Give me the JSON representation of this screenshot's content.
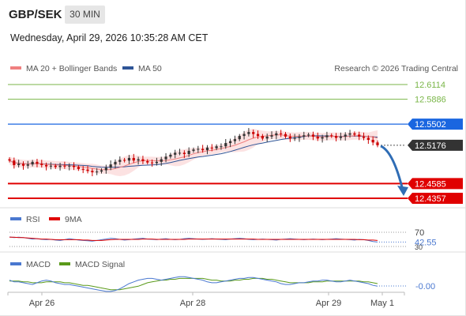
{
  "header": {
    "symbol": "GBP/SEK",
    "timeframe": "30 MIN",
    "datetime": "Wednesday, April 29, 2026 10:35:28 AM CET"
  },
  "price_panel": {
    "legend": [
      {
        "label": "MA 20 + Bollinger Bands",
        "color": "#f08080"
      },
      {
        "label": "MA 50",
        "color": "#2f5597"
      }
    ],
    "research_text": "Research © 2026 Trading Central",
    "levels": [
      {
        "value": 12.6114,
        "label": "12.6114",
        "color": "#7ab648",
        "kind": "resistance"
      },
      {
        "value": 12.5886,
        "label": "12.5886",
        "color": "#7ab648",
        "kind": "resistance"
      },
      {
        "value": 12.5502,
        "label": "12.5502",
        "color": "#1a66e0",
        "kind": "pivot"
      },
      {
        "value": 12.5176,
        "label": "12.5176",
        "color": "#333333",
        "kind": "last-price"
      },
      {
        "value": 12.4585,
        "label": "12.4585",
        "color": "#e00000",
        "kind": "target"
      },
      {
        "value": 12.4357,
        "label": "12.4357",
        "color": "#e00000",
        "kind": "target"
      }
    ]
  },
  "rsi_panel": {
    "legend": [
      {
        "label": "RSI",
        "color": "#4a78d0"
      },
      {
        "label": "9MA",
        "color": "#e00000"
      }
    ],
    "levels": [
      {
        "value": 70,
        "label": "70"
      },
      {
        "value": 42.55,
        "label": "42.55"
      },
      {
        "value": 30,
        "label": "30"
      }
    ]
  },
  "macd_panel": {
    "legend": [
      {
        "label": "MACD",
        "color": "#4a78d0"
      },
      {
        "label": "MACD Signal",
        "color": "#5a9a1a"
      }
    ],
    "value_label": "-0.00"
  },
  "x_axis": {
    "ticks": [
      "Apr 26",
      "Apr 28",
      "Apr 29",
      "May 1"
    ]
  },
  "chart_data": {
    "type": "candlestick",
    "price": {
      "last": 12.5176,
      "ylim": [
        12.4357,
        12.6114
      ],
      "close_series": [
        12.494,
        12.487,
        12.489,
        12.486,
        12.488,
        12.492,
        12.489,
        12.487,
        12.485,
        12.486,
        12.484,
        12.486,
        12.485,
        12.486,
        12.484,
        12.481,
        12.48,
        12.478,
        12.476,
        12.477,
        12.479,
        12.483,
        12.488,
        12.492,
        12.495,
        12.494,
        12.498,
        12.494,
        12.496,
        12.493,
        12.491,
        12.49,
        12.492,
        12.496,
        12.5,
        12.503,
        12.506,
        12.506,
        12.504,
        12.509,
        12.511,
        12.512,
        12.51,
        12.514,
        12.513,
        12.516,
        12.516,
        12.521,
        12.524,
        12.527,
        12.532,
        12.535,
        12.538,
        12.535,
        12.532,
        12.528,
        12.531,
        12.533,
        12.536,
        12.535,
        12.531,
        12.528,
        12.529,
        12.531,
        12.533,
        12.534,
        12.531,
        12.528,
        12.53,
        12.533,
        12.532,
        12.529,
        12.531,
        12.534,
        12.536,
        12.534,
        12.531,
        12.529,
        12.526,
        12.522,
        12.5176
      ]
    },
    "rsi": {
      "ylim": [
        0,
        100
      ],
      "rsi_series": [
        57,
        55,
        56,
        55,
        53,
        51,
        52,
        50,
        49,
        50,
        48,
        47,
        49,
        52,
        50,
        48,
        47,
        46,
        45,
        47,
        49,
        51,
        53,
        52,
        50,
        48,
        49,
        51,
        52,
        53,
        51,
        50,
        49,
        51,
        52,
        50,
        49,
        50,
        52,
        53,
        52,
        51,
        50,
        51,
        52,
        51,
        50,
        49,
        51,
        52,
        53,
        52,
        50,
        49,
        50,
        51,
        50,
        49,
        48,
        50,
        51,
        52,
        51,
        50,
        49,
        50,
        51,
        50,
        49,
        50,
        51,
        52,
        51,
        50,
        49,
        48,
        50,
        49,
        47,
        44,
        42.55
      ],
      "ma9_series": [
        56,
        56,
        55,
        55,
        54,
        53,
        52,
        51,
        51,
        50,
        49,
        49,
        49,
        49,
        49,
        49,
        48,
        48,
        47,
        47,
        47,
        48,
        49,
        50,
        50,
        50,
        50,
        50,
        50,
        51,
        51,
        51,
        50,
        50,
        50,
        50,
        50,
        50,
        50,
        51,
        51,
        51,
        51,
        51,
        51,
        51,
        51,
        51,
        51,
        51,
        51,
        51,
        51,
        51,
        50,
        50,
        50,
        50,
        50,
        50,
        50,
        50,
        50,
        50,
        50,
        50,
        50,
        50,
        50,
        50,
        50,
        50,
        50,
        50,
        50,
        50,
        49,
        49,
        48,
        48,
        47
      ]
    },
    "macd": {
      "value": -0.0,
      "macd_series": [
        0.004,
        0.002,
        0.002,
        0.001,
        0.0,
        -0.001,
        0.001,
        0.003,
        0.004,
        0.003,
        0.001,
        0.0,
        -0.001,
        -0.001,
        -0.002,
        -0.003,
        -0.004,
        -0.005,
        -0.006,
        -0.007,
        -0.008,
        -0.009,
        -0.009,
        -0.008,
        -0.006,
        -0.003,
        0.0,
        0.002,
        0.004,
        0.005,
        0.006,
        0.006,
        0.005,
        0.004,
        0.005,
        0.006,
        0.007,
        0.008,
        0.008,
        0.007,
        0.006,
        0.005,
        0.004,
        0.002,
        0.001,
        0.001,
        0.002,
        0.003,
        0.004,
        0.005,
        0.006,
        0.006,
        0.007,
        0.007,
        0.006,
        0.005,
        0.004,
        0.003,
        0.002,
        0.0,
        -0.001,
        -0.001,
        0.0,
        0.001,
        0.001,
        0.002,
        0.003,
        0.003,
        0.004,
        0.004,
        0.003,
        0.002,
        0.002,
        0.003,
        0.004,
        0.003,
        0.002,
        0.001,
        0.0,
        -0.002,
        -0.003
      ],
      "signal_series": [
        0.003,
        0.003,
        0.003,
        0.002,
        0.002,
        0.001,
        0.001,
        0.001,
        0.002,
        0.002,
        0.002,
        0.002,
        0.001,
        0.001,
        0.0,
        -0.001,
        -0.002,
        -0.002,
        -0.003,
        -0.004,
        -0.005,
        -0.006,
        -0.007,
        -0.007,
        -0.007,
        -0.006,
        -0.005,
        -0.004,
        -0.003,
        -0.001,
        0.001,
        0.002,
        0.003,
        0.004,
        0.004,
        0.005,
        0.005,
        0.006,
        0.006,
        0.006,
        0.006,
        0.006,
        0.006,
        0.005,
        0.004,
        0.004,
        0.003,
        0.003,
        0.003,
        0.004,
        0.004,
        0.005,
        0.005,
        0.006,
        0.006,
        0.006,
        0.005,
        0.005,
        0.004,
        0.003,
        0.002,
        0.001,
        0.001,
        0.001,
        0.001,
        0.001,
        0.002,
        0.002,
        0.002,
        0.003,
        0.003,
        0.003,
        0.003,
        0.003,
        0.003,
        0.003,
        0.003,
        0.002,
        0.002,
        0.001,
        0.0
      ]
    }
  }
}
